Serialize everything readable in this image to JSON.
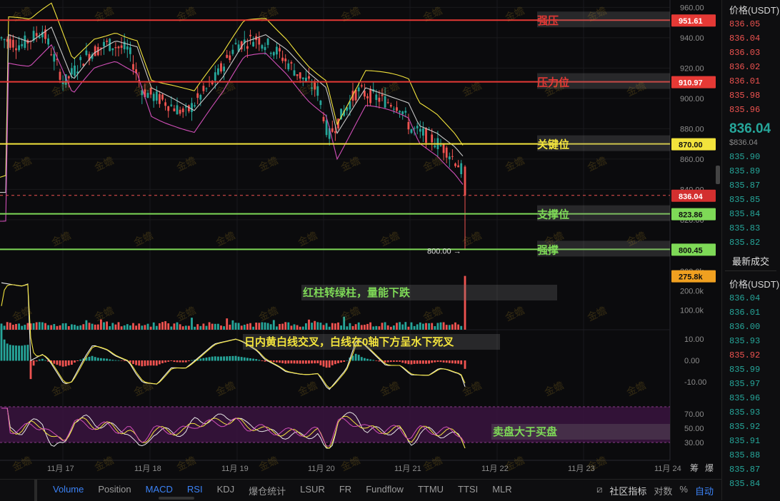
{
  "chart_data": {
    "type": "candlestick",
    "price_axis": {
      "ticks": [
        "960.00",
        "940.00",
        "920.00",
        "900.00",
        "880.00",
        "860.00",
        "840.00",
        "820.00"
      ],
      "range": [
        795,
        963
      ]
    },
    "x_axis": {
      "ticks": [
        "11月 17",
        "11月 18",
        "11月 19",
        "11月 20",
        "11月 21",
        "11月 22",
        "11月 23",
        "11月 24"
      ]
    },
    "levels": [
      {
        "price": 951.61,
        "value": "951.61",
        "label": "强压",
        "color": "#e53935"
      },
      {
        "price": 910.97,
        "value": "910.97",
        "label": "压力位",
        "color": "#e53935"
      },
      {
        "price": 870.0,
        "value": "870.00",
        "label": "关键位",
        "color": "#f2e33c"
      },
      {
        "price": 823.86,
        "value": "823.86",
        "label": "支撑位",
        "color": "#7ed957"
      },
      {
        "price": 800.45,
        "value": "800.45",
        "label": "强撑",
        "color": "#7ed957"
      }
    ],
    "last_price": {
      "price": 836.04,
      "value": "836.04"
    },
    "low_marker": "800.00",
    "volume": {
      "ticks": [
        "300.0k",
        "200.0k",
        "100.0k"
      ],
      "last": "275.8k",
      "annotation": "红柱转绿柱，量能下跌"
    },
    "macd": {
      "ticks": [
        "10.00",
        "0.00",
        "-10.00"
      ],
      "annotation": "日内黄白线交叉，白线在0轴下方呈水下死叉"
    },
    "rsi": {
      "ticks": [
        "70.00",
        "50.00",
        "30.00"
      ],
      "annotation": "卖盘大于买盘"
    },
    "watermark": "金蟾"
  },
  "colors": {
    "up": "#26a69a",
    "down": "#ef5350",
    "yellow": "#f2e33c",
    "green": "#7ed957",
    "red": "#e53935",
    "rsi_band": "#3a1440"
  },
  "sidebar": {
    "header": "价格(USDT)",
    "asks": [
      "836.05",
      "836.04",
      "836.03",
      "836.02",
      "836.01",
      "835.98",
      "835.96"
    ],
    "current": "836.04",
    "current_sub": "$836.04",
    "bids": [
      "835.90",
      "835.89",
      "835.87",
      "835.85",
      "835.84",
      "835.83",
      "835.82"
    ],
    "trades_title": "最新成交",
    "trades_header": "价格(USDT)",
    "trades": [
      "836.04",
      "836.01",
      "836.00",
      "835.93",
      "835.92",
      "835.99",
      "835.97",
      "835.96",
      "835.93",
      "835.92",
      "835.91",
      "835.88",
      "835.87",
      "835.84"
    ],
    "trade_colors": [
      "g",
      "g",
      "g",
      "g",
      "r",
      "g",
      "g",
      "g",
      "g",
      "g",
      "g",
      "g",
      "g",
      "g"
    ]
  },
  "toolbar": {
    "tabs": [
      "Volume",
      "Position",
      "MACD",
      "RSI",
      "KDJ",
      "爆仓统计",
      "LSUR",
      "FR",
      "Fundflow",
      "TTMU",
      "TTSI",
      "MLR"
    ],
    "active": [
      "Volume",
      "MACD",
      "RSI"
    ],
    "right": [
      "社区指标",
      "对数",
      "%",
      "自动"
    ],
    "corner": [
      "筹",
      "爆"
    ]
  }
}
